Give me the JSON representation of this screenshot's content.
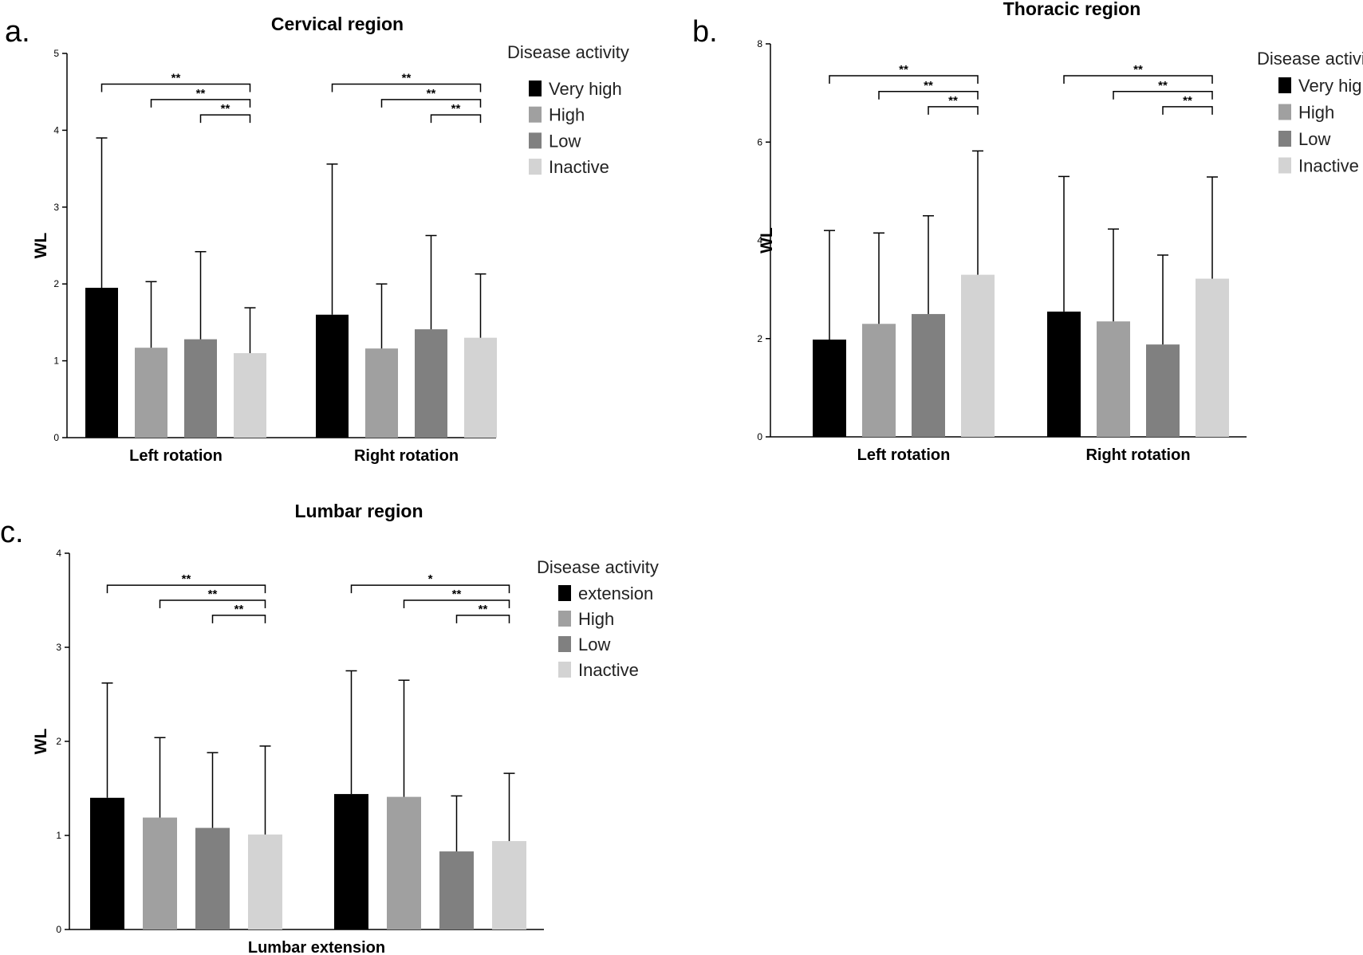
{
  "figure": {
    "legend_title": "Disease activity",
    "colors": [
      "#000000",
      "#a0a0a0",
      "#808080",
      "#d3d3d3"
    ]
  },
  "chart_data": [
    {
      "panel": "a.",
      "type": "bar",
      "title": "Cervical region",
      "ylabel": "WL",
      "xlabel": "",
      "ylim": [
        0,
        5
      ],
      "yticks": [
        0,
        1,
        2,
        3,
        4,
        5
      ],
      "categories": [
        "Left rotation",
        "Right rotation"
      ],
      "legend_title": "Disease activity",
      "series": [
        {
          "name": "Very high",
          "values": [
            1.95,
            1.6
          ],
          "errors": [
            1.95,
            1.96
          ]
        },
        {
          "name": "High",
          "values": [
            1.17,
            1.16
          ],
          "errors": [
            0.86,
            0.84
          ]
        },
        {
          "name": "Low",
          "values": [
            1.28,
            1.41
          ],
          "errors": [
            1.14,
            1.22
          ]
        },
        {
          "name": "Inactive",
          "values": [
            1.1,
            1.3
          ],
          "errors": [
            0.59,
            0.83
          ]
        }
      ],
      "significance": [
        {
          "category": 0,
          "from": 0,
          "to": 3,
          "label": "**",
          "y": 4.6
        },
        {
          "category": 0,
          "from": 1,
          "to": 3,
          "label": "**",
          "y": 4.4
        },
        {
          "category": 0,
          "from": 2,
          "to": 3,
          "label": "**",
          "y": 4.2
        },
        {
          "category": 1,
          "from": 0,
          "to": 3,
          "label": "**",
          "y": 4.6
        },
        {
          "category": 1,
          "from": 1,
          "to": 3,
          "label": "**",
          "y": 4.4
        },
        {
          "category": 1,
          "from": 2,
          "to": 3,
          "label": "**",
          "y": 4.2
        }
      ]
    },
    {
      "panel": "b.",
      "type": "bar",
      "title": "Thoracic region",
      "ylabel": "WL",
      "xlabel": "",
      "ylim": [
        0,
        8
      ],
      "yticks": [
        0,
        2,
        4,
        6,
        8
      ],
      "categories": [
        "Left rotation",
        "Right rotation"
      ],
      "legend_title": "Disease activity",
      "series": [
        {
          "name": "Very high",
          "values": [
            1.98,
            2.55
          ],
          "errors": [
            2.22,
            2.75
          ]
        },
        {
          "name": "High",
          "values": [
            2.3,
            2.35
          ],
          "errors": [
            1.85,
            1.88
          ]
        },
        {
          "name": "Low",
          "values": [
            2.5,
            1.88
          ],
          "errors": [
            2.0,
            1.82
          ]
        },
        {
          "name": "Inactive",
          "values": [
            3.3,
            3.22
          ],
          "errors": [
            2.52,
            2.07
          ]
        }
      ],
      "significance": [
        {
          "category": 0,
          "from": 0,
          "to": 3,
          "label": "**",
          "y": 7.35
        },
        {
          "category": 0,
          "from": 1,
          "to": 3,
          "label": "**",
          "y": 7.03
        },
        {
          "category": 0,
          "from": 2,
          "to": 3,
          "label": "**",
          "y": 6.72
        },
        {
          "category": 1,
          "from": 0,
          "to": 3,
          "label": "**",
          "y": 7.35
        },
        {
          "category": 1,
          "from": 1,
          "to": 3,
          "label": "**",
          "y": 7.03
        },
        {
          "category": 1,
          "from": 2,
          "to": 3,
          "label": "**",
          "y": 6.72
        }
      ]
    },
    {
      "panel": "c.",
      "type": "bar",
      "title": "Lumbar region",
      "ylabel": "WL",
      "xlabel": "Lumbar extension",
      "ylim": [
        0,
        4
      ],
      "yticks": [
        0,
        1,
        2,
        3,
        4
      ],
      "categories": [
        "",
        ""
      ],
      "legend_title": "Disease activity",
      "series": [
        {
          "name": "extension",
          "values": [
            1.4,
            1.44
          ],
          "errors": [
            1.22,
            1.31
          ]
        },
        {
          "name": "High",
          "values": [
            1.19,
            1.41
          ],
          "errors": [
            0.85,
            1.24
          ]
        },
        {
          "name": "Low",
          "values": [
            1.08,
            0.83
          ],
          "errors": [
            0.8,
            0.59
          ]
        },
        {
          "name": "Inactive",
          "values": [
            1.01,
            0.94
          ],
          "errors": [
            0.94,
            0.72
          ]
        }
      ],
      "significance": [
        {
          "category": 0,
          "from": 0,
          "to": 3,
          "label": "**",
          "y": 3.66
        },
        {
          "category": 0,
          "from": 1,
          "to": 3,
          "label": "**",
          "y": 3.5
        },
        {
          "category": 0,
          "from": 2,
          "to": 3,
          "label": "**",
          "y": 3.34
        },
        {
          "category": 1,
          "from": 0,
          "to": 3,
          "label": "*",
          "y": 3.66
        },
        {
          "category": 1,
          "from": 1,
          "to": 3,
          "label": "**",
          "y": 3.5
        },
        {
          "category": 1,
          "from": 2,
          "to": 3,
          "label": "**",
          "y": 3.34
        }
      ]
    }
  ]
}
